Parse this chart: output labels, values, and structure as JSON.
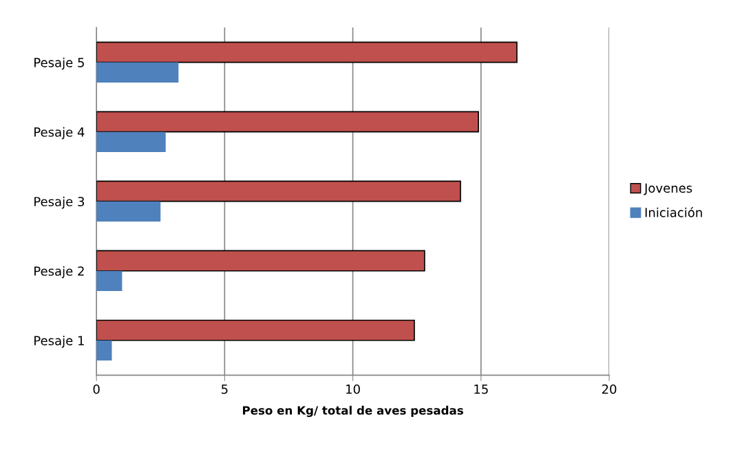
{
  "chart_data": {
    "type": "bar",
    "orientation": "horizontal",
    "categories": [
      "Pesaje 5",
      "Pesaje 4",
      "Pesaje 3",
      "Pesaje 2",
      "Pesaje 1"
    ],
    "series": [
      {
        "name": "Jovenes",
        "color": "#c0504d",
        "values": [
          16.4,
          14.9,
          14.2,
          12.8,
          12.4
        ]
      },
      {
        "name": "Iniciación",
        "color": "#4f81bd",
        "values": [
          3.2,
          2.7,
          2.5,
          1.0,
          0.6
        ]
      }
    ],
    "xlabel": "Peso en Kg/ total de aves pesadas",
    "xlim": [
      0,
      20
    ],
    "xticks": [
      0,
      5,
      10,
      15,
      20
    ],
    "grid": "x",
    "legend": "right"
  }
}
